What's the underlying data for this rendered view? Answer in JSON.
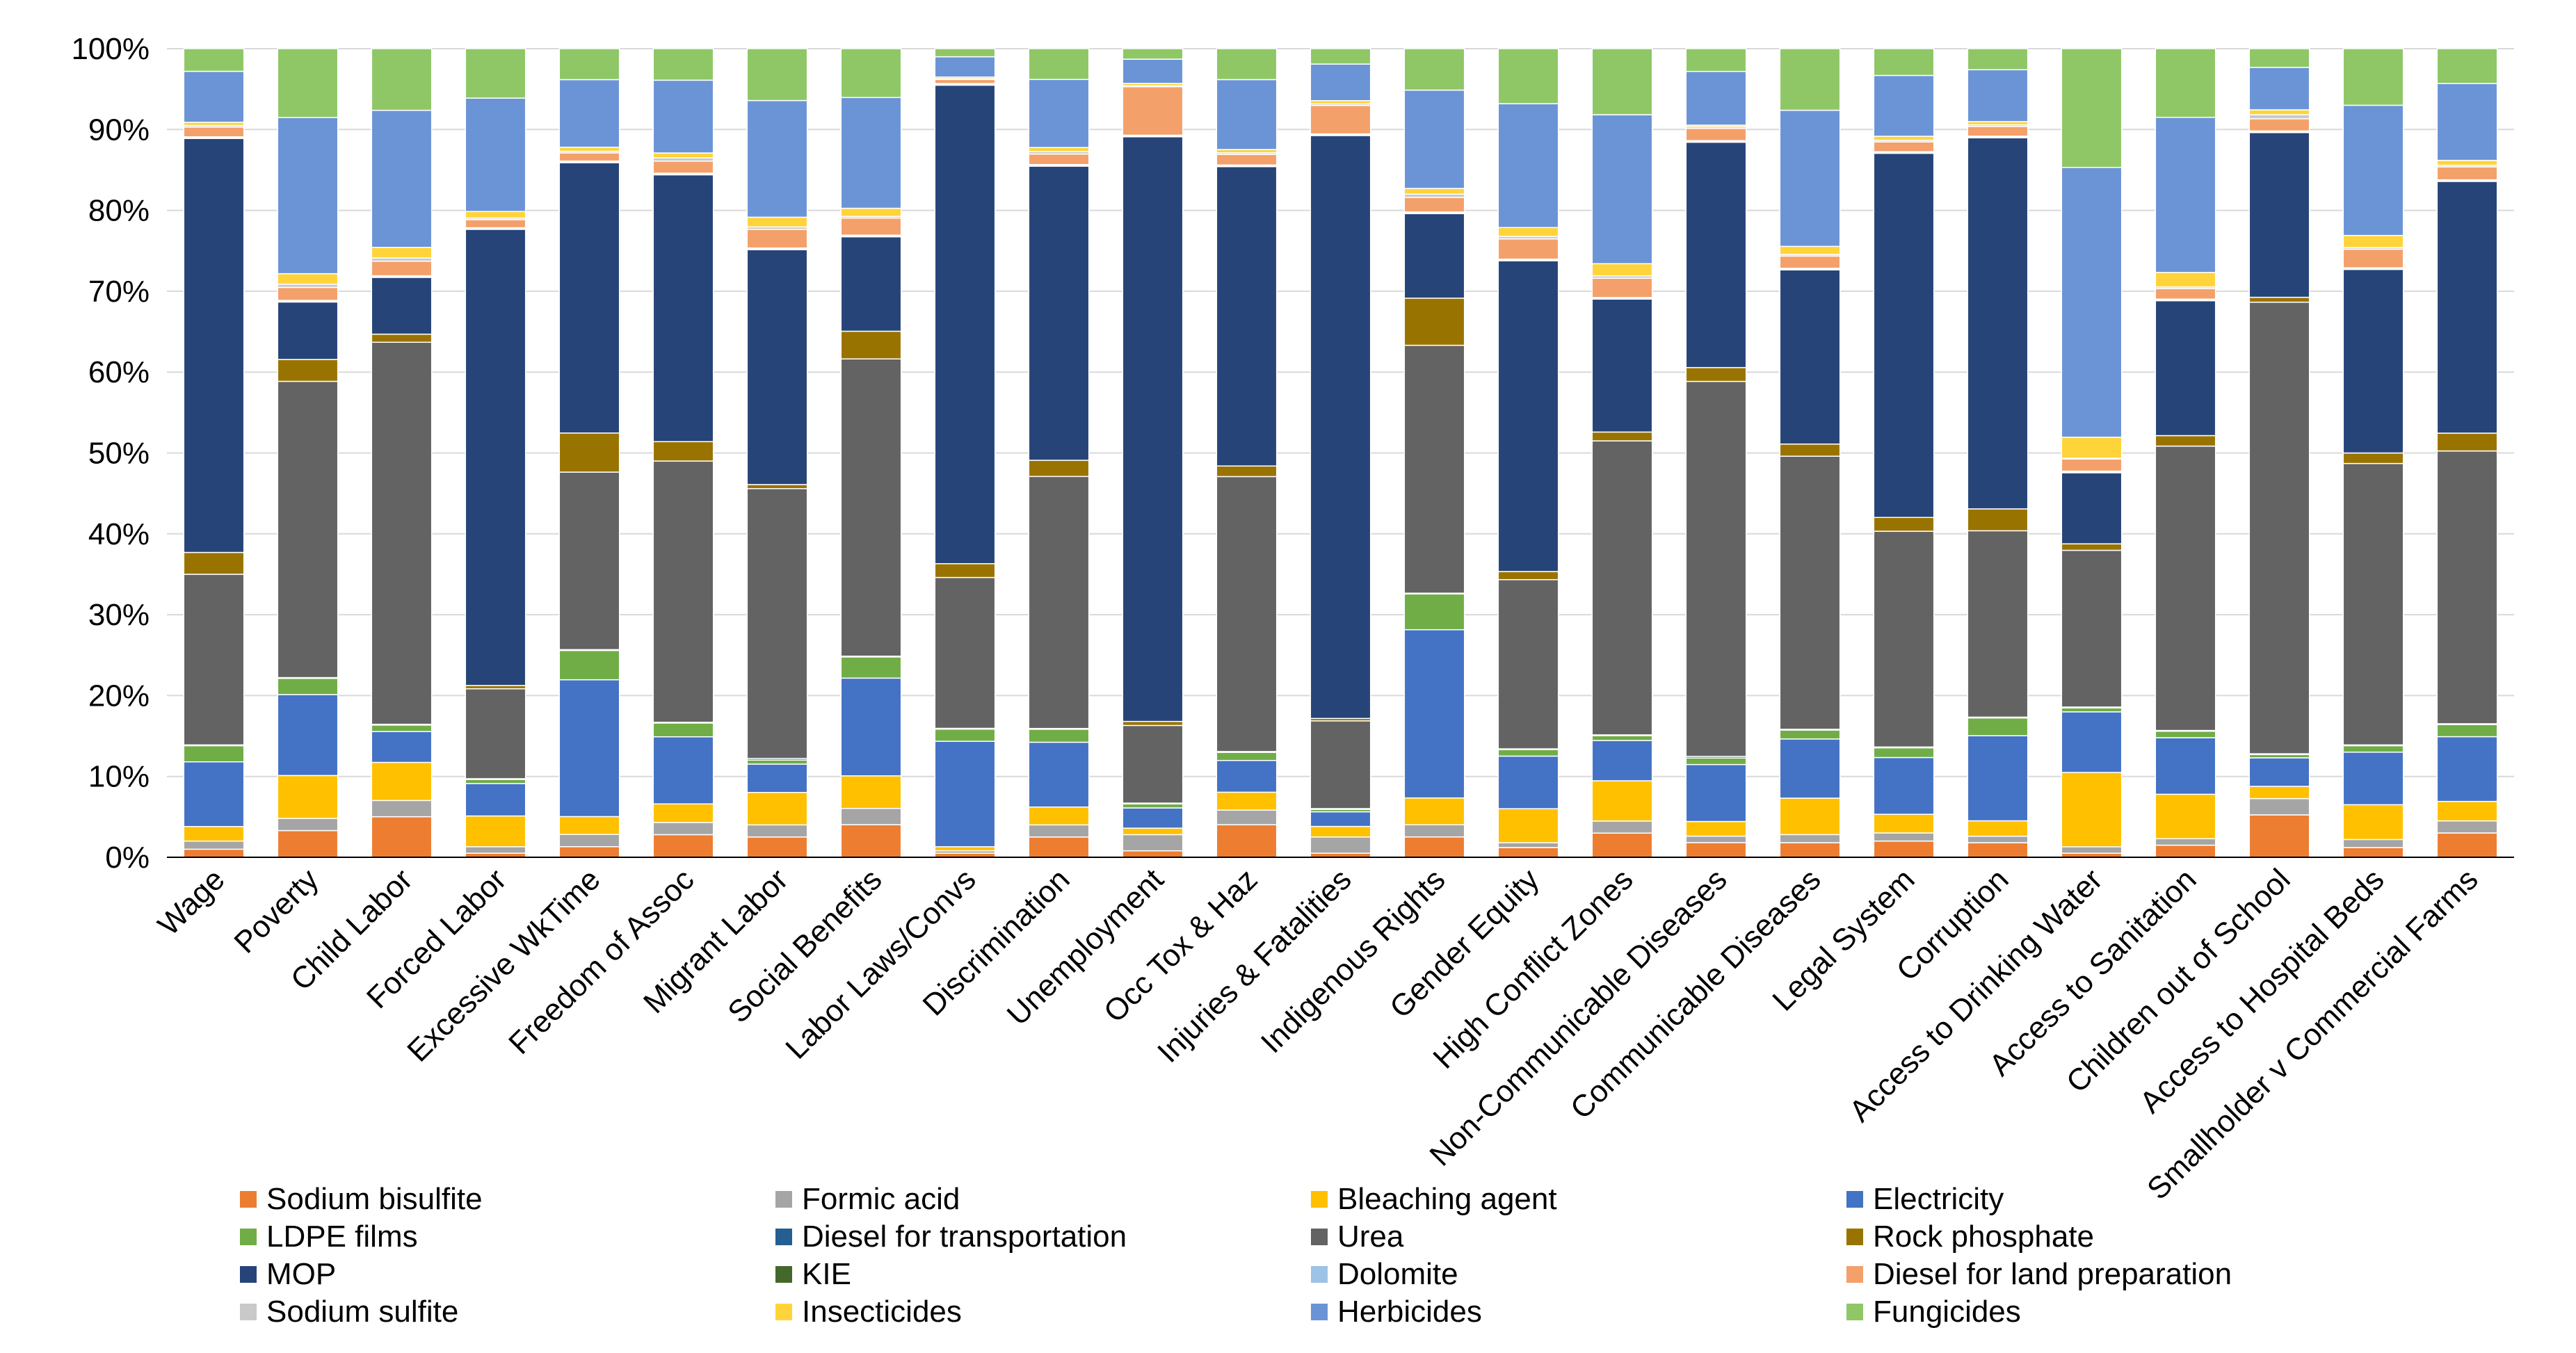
{
  "chart_data": {
    "type": "bar",
    "stacked": true,
    "percent": true,
    "title": "",
    "xlabel": "",
    "ylabel": "",
    "ylim": [
      0,
      100
    ],
    "y_ticks": [
      "0%",
      "10%",
      "20%",
      "30%",
      "40%",
      "50%",
      "60%",
      "70%",
      "80%",
      "90%",
      "100%"
    ],
    "legend_position": "bottom",
    "categories": [
      "Wage",
      "Poverty",
      "Child Labor",
      "Forced Labor",
      "Excessive WkTime",
      "Freedom of Assoc",
      "Migrant Labor",
      "Social Benefits",
      "Labor Laws/Convs",
      "Discrimination",
      "Unemployment",
      "Occ Tox & Haz",
      "Injuries & Fatalities",
      "Indigenous Rights",
      "Gender Equity",
      "High Conflict Zones",
      "Non-Communicable Diseases",
      "Communicable Diseases",
      "Legal System",
      "Corruption",
      "Access to Drinking Water",
      "Access to Sanitation",
      "Children out of School",
      "Access to Hospital Beds",
      "Smallholder v Commercial Farms"
    ],
    "series": [
      {
        "name": "Sodium bisulfite",
        "color": "#ED7D31",
        "values": [
          1.0,
          3.3,
          5.0,
          0.5,
          1.3,
          2.8,
          2.5,
          4.0,
          0.5,
          2.5,
          0.8,
          4.0,
          0.5,
          2.5,
          1.2,
          3.0,
          1.8,
          1.8,
          2.0,
          1.8,
          0.5,
          1.5,
          5.2,
          1.2,
          3.0
        ]
      },
      {
        "name": "Formic acid",
        "color": "#A5A5A5",
        "values": [
          1.0,
          1.5,
          2.0,
          0.8,
          1.5,
          1.5,
          1.5,
          2.0,
          0.3,
          1.5,
          2.0,
          1.8,
          2.0,
          1.5,
          0.6,
          1.5,
          0.8,
          1.0,
          1.0,
          0.8,
          0.8,
          0.8,
          2.0,
          1.0,
          1.5
        ]
      },
      {
        "name": "Bleaching agent",
        "color": "#FFC000",
        "values": [
          1.8,
          5.3,
          4.7,
          3.8,
          2.2,
          2.3,
          4.0,
          4.0,
          0.5,
          2.2,
          0.8,
          2.2,
          1.3,
          3.3,
          4.2,
          5.0,
          1.8,
          4.5,
          2.3,
          1.9,
          9.2,
          5.5,
          1.5,
          4.3,
          2.4
        ]
      },
      {
        "name": "Electricity",
        "color": "#4472C4",
        "values": [
          8.0,
          10.0,
          3.8,
          4.0,
          16.8,
          8.3,
          3.5,
          12.0,
          13.0,
          8.0,
          2.5,
          3.9,
          1.8,
          20.7,
          6.5,
          5.0,
          7.0,
          7.3,
          7.0,
          10.5,
          7.5,
          7.0,
          3.5,
          6.5,
          8.0
        ]
      },
      {
        "name": "LDPE films",
        "color": "#70AD47",
        "values": [
          2.0,
          2.0,
          0.8,
          0.5,
          3.6,
          1.7,
          0.5,
          2.6,
          1.5,
          1.6,
          0.5,
          1.0,
          0.3,
          4.4,
          0.8,
          0.6,
          0.8,
          1.1,
          1.2,
          2.2,
          0.5,
          0.8,
          0.4,
          0.8,
          1.5
        ]
      },
      {
        "name": "Diesel for transportation",
        "color": "#255E91",
        "values": [
          0.1,
          0.1,
          0.1,
          0.1,
          0.1,
          0.1,
          0.2,
          0.1,
          0.1,
          0.1,
          0.1,
          0.1,
          0.1,
          0.1,
          0.1,
          0.1,
          0.2,
          0.1,
          0.1,
          0.1,
          0.1,
          0.1,
          0.1,
          0.1,
          0.1
        ]
      },
      {
        "name": "Urea",
        "color": "#636363",
        "values": [
          21.1,
          36.6,
          47.1,
          11.1,
          21.8,
          32.3,
          33.3,
          36.5,
          18.6,
          31.1,
          9.6,
          33.8,
          10.8,
          30.5,
          20.9,
          36.5,
          46.1,
          33.7,
          26.6,
          23.0,
          19.4,
          35.2,
          55.4,
          34.8,
          33.7
        ]
      },
      {
        "name": "Rock phosphate",
        "color": "#997300",
        "values": [
          2.7,
          2.7,
          1.0,
          0.4,
          4.8,
          2.4,
          0.5,
          3.4,
          1.7,
          2.0,
          0.5,
          1.3,
          0.3,
          5.8,
          1.0,
          1.1,
          1.7,
          1.5,
          1.7,
          2.7,
          0.8,
          1.3,
          0.6,
          1.3,
          2.2
        ]
      },
      {
        "name": "MOP",
        "color": "#264478",
        "values": [
          51.2,
          7.1,
          7.0,
          56.3,
          33.2,
          33.0,
          29.0,
          11.6,
          59.0,
          36.3,
          72.3,
          36.8,
          71.8,
          10.4,
          38.4,
          16.5,
          27.7,
          21.5,
          44.9,
          45.8,
          8.8,
          16.7,
          20.2,
          22.7,
          31.1
        ]
      },
      {
        "name": "KIE",
        "color": "#43682B",
        "values": [
          0.1,
          0.1,
          0.1,
          0.1,
          0.1,
          0.1,
          0.1,
          0.1,
          0.1,
          0.1,
          0.1,
          0.1,
          0.1,
          0.1,
          0.1,
          0.1,
          0.1,
          0.1,
          0.1,
          0.1,
          0.1,
          0.1,
          0.1,
          0.1,
          0.1
        ]
      },
      {
        "name": "Dolomite",
        "color": "#9DC3E6",
        "values": [
          0.1,
          0.1,
          0.1,
          0.1,
          0.1,
          0.1,
          0.1,
          0.1,
          0.1,
          0.1,
          0.1,
          0.1,
          0.1,
          0.1,
          0.1,
          0.1,
          0.1,
          0.1,
          0.1,
          0.1,
          0.1,
          0.1,
          0.1,
          0.1,
          0.1
        ]
      },
      {
        "name": "Diesel for land preparation",
        "color": "#F4A06A",
        "values": [
          1.2,
          1.6,
          1.8,
          1.0,
          1.0,
          1.5,
          2.3,
          2.1,
          0.5,
          1.3,
          6.0,
          1.3,
          3.5,
          1.8,
          2.5,
          2.4,
          1.5,
          1.5,
          1.2,
          1.2,
          1.5,
          1.3,
          1.5,
          2.3,
          1.6
        ]
      },
      {
        "name": "Sodium sulfite",
        "color": "#C9C9C9",
        "values": [
          0.2,
          0.4,
          0.4,
          0.2,
          0.2,
          0.4,
          0.3,
          0.2,
          0.1,
          0.3,
          0.1,
          0.2,
          0.2,
          0.4,
          0.3,
          0.3,
          0.2,
          0.2,
          0.2,
          0.2,
          0.1,
          0.2,
          0.5,
          0.2,
          0.2
        ]
      },
      {
        "name": "Insecticides",
        "color": "#FFD43B",
        "values": [
          0.4,
          1.3,
          1.3,
          0.8,
          0.5,
          0.6,
          1.2,
          1.0,
          0.2,
          0.5,
          0.3,
          0.4,
          0.4,
          0.7,
          1.1,
          1.5,
          0.2,
          1.0,
          0.5,
          0.4,
          2.6,
          1.8,
          0.6,
          1.5,
          0.6
        ]
      },
      {
        "name": "Herbicides",
        "color": "#6B94D6",
        "values": [
          6.3,
          19.3,
          16.9,
          14.0,
          8.3,
          9.0,
          14.4,
          13.6,
          2.5,
          8.4,
          3.0,
          8.6,
          4.5,
          12.1,
          15.3,
          18.5,
          6.6,
          16.8,
          7.5,
          6.4,
          33.4,
          19.2,
          5.2,
          16.1,
          9.5
        ]
      },
      {
        "name": "Fungicides",
        "color": "#8FC766",
        "values": [
          2.8,
          8.5,
          7.6,
          6.1,
          3.8,
          3.9,
          6.4,
          6.0,
          1.0,
          3.8,
          1.3,
          3.8,
          1.9,
          5.1,
          6.8,
          8.2,
          2.8,
          7.6,
          3.3,
          2.6,
          14.7,
          8.5,
          2.3,
          7.0,
          4.3
        ]
      }
    ]
  }
}
